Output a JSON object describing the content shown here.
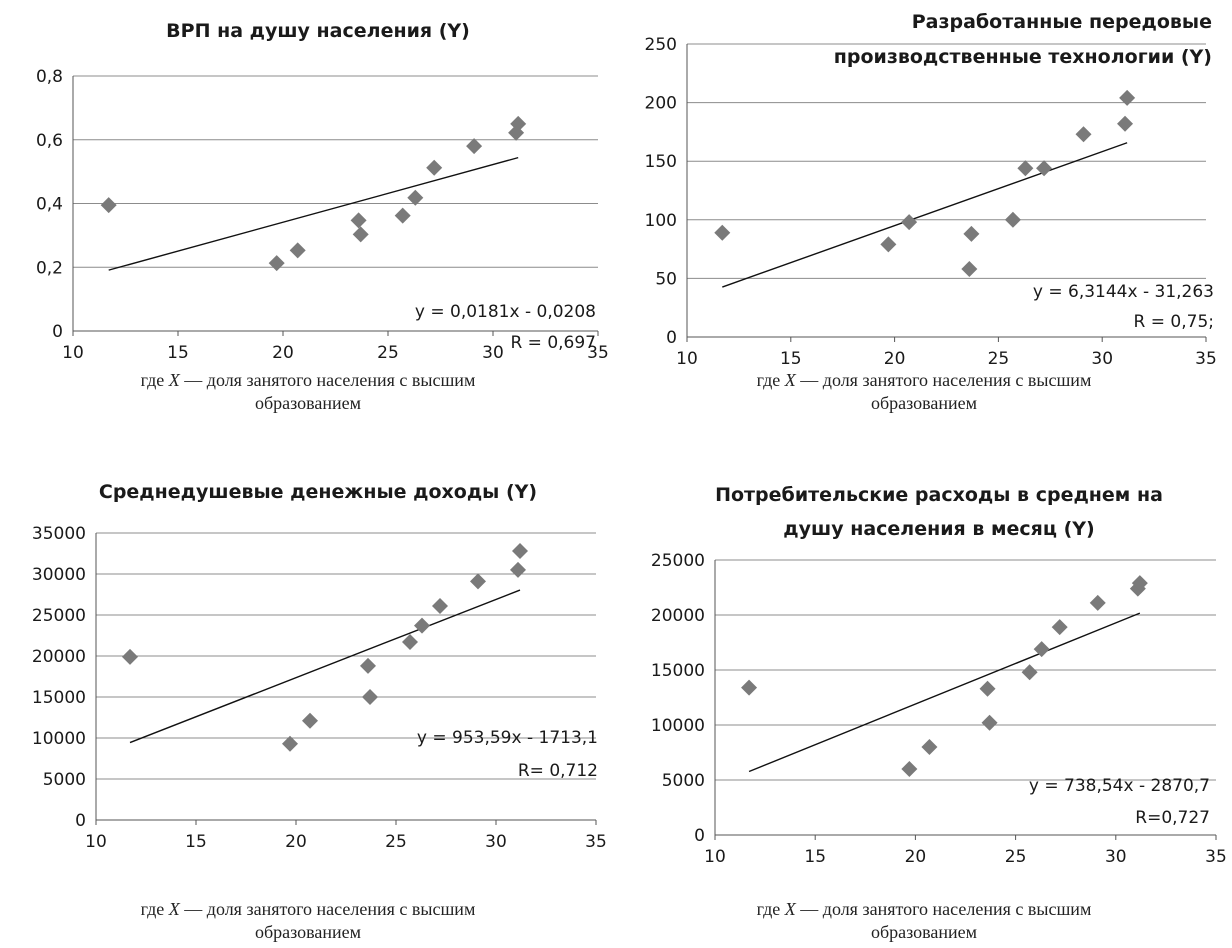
{
  "caption": {
    "prefix": "где ",
    "var": "X",
    "suffix": " — доля занятого населения с высшим",
    "line2": "образованием"
  },
  "colors": {
    "marker": "#7a7a7a",
    "grid": "#8c8c8c",
    "axis": "#555555",
    "trend": "#111111"
  },
  "chart_data": [
    {
      "type": "scatter",
      "title": [
        "ВРП на душу населения (Y)"
      ],
      "x": [
        11.7,
        19.7,
        20.7,
        23.6,
        23.7,
        25.7,
        26.3,
        27.2,
        29.1,
        31.1,
        31.2
      ],
      "y": [
        0.395,
        0.213,
        0.253,
        0.347,
        0.303,
        0.362,
        0.418,
        0.512,
        0.58,
        0.622,
        0.65
      ],
      "xlim": [
        10,
        35
      ],
      "ylim": [
        0,
        0.8
      ],
      "xticks": [
        10,
        15,
        20,
        25,
        30,
        35
      ],
      "yticks": [
        0,
        0.2,
        0.4,
        0.6,
        0.8
      ],
      "ytick_labels": [
        "0",
        "0,2",
        "0,4",
        "0,6",
        "0,8"
      ],
      "grid": "horizontal",
      "trendline": {
        "slope": 0.0181,
        "intercept": -0.0208,
        "x_range": [
          11.7,
          31.2
        ]
      },
      "annotations": [
        "y = 0,0181x - 0,0208",
        "R = 0,697"
      ]
    },
    {
      "type": "scatter",
      "title": [
        "Разработанные  передовые",
        "производственные технологии (Y)"
      ],
      "x": [
        11.7,
        19.7,
        20.7,
        23.6,
        23.7,
        25.7,
        26.3,
        27.2,
        29.1,
        31.1,
        31.2
      ],
      "y": [
        89,
        79,
        98,
        58,
        88,
        100,
        144,
        144,
        173,
        182,
        204
      ],
      "xlim": [
        10,
        35
      ],
      "ylim": [
        0,
        250
      ],
      "xticks": [
        10,
        15,
        20,
        25,
        30,
        35
      ],
      "yticks": [
        0,
        50,
        100,
        150,
        200,
        250
      ],
      "ytick_labels": [
        "0",
        "50",
        "100",
        "150",
        "200",
        "250"
      ],
      "grid": "horizontal",
      "trendline": {
        "slope": 6.3144,
        "intercept": -31.263,
        "x_range": [
          11.7,
          31.2
        ]
      },
      "annotations": [
        "y = 6,3144x - 31,263",
        "R = 0,75;"
      ]
    },
    {
      "type": "scatter",
      "title": [
        "Среднедушевые денежные доходы (Y)"
      ],
      "x": [
        11.7,
        19.7,
        20.7,
        23.6,
        23.7,
        25.7,
        26.3,
        27.2,
        29.1,
        31.1,
        31.2
      ],
      "y": [
        19900,
        9300,
        12100,
        18800,
        15000,
        21700,
        23700,
        26100,
        29100,
        30500,
        32800
      ],
      "xlim": [
        10,
        35
      ],
      "ylim": [
        0,
        35000
      ],
      "xticks": [
        10,
        15,
        20,
        25,
        30,
        35
      ],
      "yticks": [
        0,
        5000,
        10000,
        15000,
        20000,
        25000,
        30000,
        35000
      ],
      "ytick_labels": [
        "0",
        "5000",
        "10000",
        "15000",
        "20000",
        "25000",
        "30000",
        "35000"
      ],
      "grid": "horizontal",
      "trendline": {
        "slope": 953.59,
        "intercept": -1713.1,
        "x_range": [
          11.7,
          31.2
        ]
      },
      "annotations": [
        "y = 953,59x - 1713,1",
        "R= 0,712"
      ]
    },
    {
      "type": "scatter",
      "title": [
        "Потребительские расходы в среднем на",
        "душу населения в месяц (Y)"
      ],
      "x": [
        11.7,
        19.7,
        20.7,
        23.6,
        23.7,
        25.7,
        26.3,
        27.2,
        29.1,
        31.1,
        31.2
      ],
      "y": [
        13400,
        6000,
        8000,
        13300,
        10200,
        14800,
        16900,
        18900,
        21100,
        22400,
        22900
      ],
      "xlim": [
        10,
        35
      ],
      "ylim": [
        0,
        25000
      ],
      "xticks": [
        10,
        15,
        20,
        25,
        30,
        35
      ],
      "yticks": [
        0,
        5000,
        10000,
        15000,
        20000,
        25000
      ],
      "ytick_labels": [
        "0",
        "5000",
        "10000",
        "15000",
        "20000",
        "25000"
      ],
      "grid": "horizontal",
      "trendline": {
        "slope": 738.54,
        "intercept": -2870.7,
        "x_range": [
          11.7,
          31.2
        ]
      },
      "annotations": [
        "y = 738,54x - 2870,7",
        "R=0,727"
      ]
    }
  ]
}
